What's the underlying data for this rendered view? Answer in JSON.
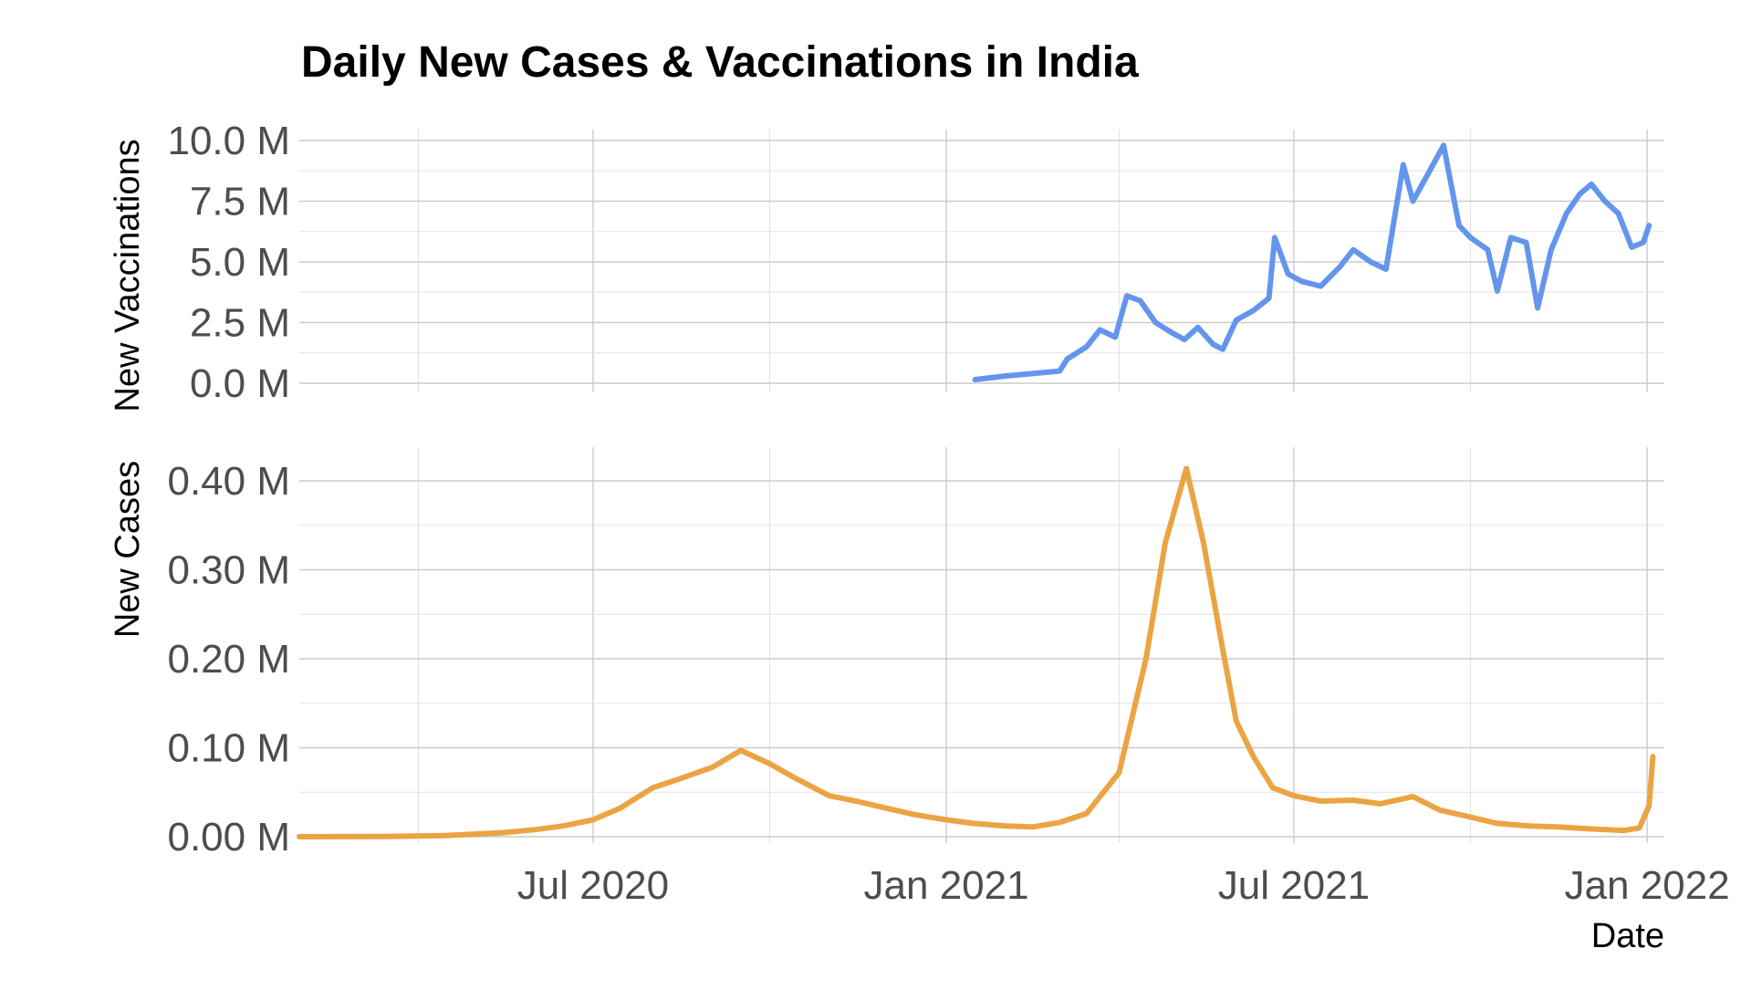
{
  "chart_data": {
    "type": "line",
    "title": "Daily New Cases & Vaccinations in India",
    "xlabel": "Date",
    "x_ticks": [
      "Jul 2020",
      "Jan 2021",
      "Jul 2021",
      "Jan 2022"
    ],
    "xlim": [
      "2020-01-30",
      "2022-01-10"
    ],
    "grid": true,
    "panels": [
      {
        "ylabel": "New Vaccinations",
        "y_ticks": [
          "0.0 M",
          "2.5 M",
          "5.0 M",
          "7.5 M",
          "10.0 M"
        ],
        "ylim": [
          0,
          10000000
        ],
        "series": [
          {
            "color": "#6495ED",
            "points": [
              [
                "2021-01-16",
                150000
              ],
              [
                "2021-02-01",
                300000
              ],
              [
                "2021-02-15",
                400000
              ],
              [
                "2021-03-01",
                500000
              ],
              [
                "2021-03-05",
                1000000
              ],
              [
                "2021-03-15",
                1500000
              ],
              [
                "2021-03-22",
                2200000
              ],
              [
                "2021-03-30",
                1900000
              ],
              [
                "2021-04-05",
                3600000
              ],
              [
                "2021-04-12",
                3400000
              ],
              [
                "2021-04-20",
                2500000
              ],
              [
                "2021-04-28",
                2100000
              ],
              [
                "2021-05-05",
                1800000
              ],
              [
                "2021-05-12",
                2300000
              ],
              [
                "2021-05-20",
                1600000
              ],
              [
                "2021-05-25",
                1400000
              ],
              [
                "2021-06-01",
                2600000
              ],
              [
                "2021-06-10",
                3000000
              ],
              [
                "2021-06-18",
                3500000
              ],
              [
                "2021-06-21",
                6000000
              ],
              [
                "2021-06-28",
                4500000
              ],
              [
                "2021-07-05",
                4200000
              ],
              [
                "2021-07-15",
                4000000
              ],
              [
                "2021-07-25",
                4800000
              ],
              [
                "2021-08-01",
                5500000
              ],
              [
                "2021-08-10",
                5000000
              ],
              [
                "2021-08-18",
                4700000
              ],
              [
                "2021-08-27",
                9000000
              ],
              [
                "2021-09-01",
                7500000
              ],
              [
                "2021-09-08",
                8500000
              ],
              [
                "2021-09-17",
                9800000
              ],
              [
                "2021-09-25",
                6500000
              ],
              [
                "2021-10-01",
                6000000
              ],
              [
                "2021-10-10",
                5500000
              ],
              [
                "2021-10-15",
                3800000
              ],
              [
                "2021-10-22",
                6000000
              ],
              [
                "2021-10-30",
                5800000
              ],
              [
                "2021-11-05",
                3100000
              ],
              [
                "2021-11-12",
                5500000
              ],
              [
                "2021-11-20",
                7000000
              ],
              [
                "2021-11-27",
                7800000
              ],
              [
                "2021-12-03",
                8200000
              ],
              [
                "2021-12-10",
                7500000
              ],
              [
                "2021-12-17",
                7000000
              ],
              [
                "2021-12-24",
                5600000
              ],
              [
                "2021-12-30",
                5800000
              ],
              [
                "2022-01-02",
                6500000
              ]
            ]
          }
        ]
      },
      {
        "ylabel": "New Cases",
        "y_ticks": [
          "0.00 M",
          "0.10 M",
          "0.20 M",
          "0.30 M",
          "0.40 M"
        ],
        "ylim": [
          0,
          400000
        ],
        "series": [
          {
            "color": "#EBA443",
            "points": [
              [
                "2020-01-30",
                0
              ],
              [
                "2020-03-15",
                300
              ],
              [
                "2020-04-15",
                1200
              ],
              [
                "2020-05-15",
                4500
              ],
              [
                "2020-06-01",
                8000
              ],
              [
                "2020-06-15",
                12000
              ],
              [
                "2020-07-01",
                19000
              ],
              [
                "2020-07-15",
                32000
              ],
              [
                "2020-08-01",
                55000
              ],
              [
                "2020-08-15",
                65000
              ],
              [
                "2020-09-01",
                78000
              ],
              [
                "2020-09-16",
                97000
              ],
              [
                "2020-10-01",
                82000
              ],
              [
                "2020-10-15",
                65000
              ],
              [
                "2020-11-01",
                46000
              ],
              [
                "2020-11-15",
                40000
              ],
              [
                "2020-12-01",
                32000
              ],
              [
                "2020-12-15",
                25000
              ],
              [
                "2021-01-01",
                19000
              ],
              [
                "2021-01-15",
                15000
              ],
              [
                "2021-02-01",
                12000
              ],
              [
                "2021-02-15",
                11000
              ],
              [
                "2021-03-01",
                16000
              ],
              [
                "2021-03-15",
                26000
              ],
              [
                "2021-04-01",
                72000
              ],
              [
                "2021-04-15",
                200000
              ],
              [
                "2021-04-25",
                330000
              ],
              [
                "2021-05-06",
                414000
              ],
              [
                "2021-05-15",
                330000
              ],
              [
                "2021-05-25",
                210000
              ],
              [
                "2021-06-01",
                130000
              ],
              [
                "2021-06-10",
                90000
              ],
              [
                "2021-06-20",
                55000
              ],
              [
                "2021-07-01",
                46000
              ],
              [
                "2021-07-15",
                40000
              ],
              [
                "2021-08-01",
                41000
              ],
              [
                "2021-08-15",
                37000
              ],
              [
                "2021-09-01",
                45000
              ],
              [
                "2021-09-15",
                30000
              ],
              [
                "2021-10-01",
                22000
              ],
              [
                "2021-10-15",
                15000
              ],
              [
                "2021-11-01",
                12000
              ],
              [
                "2021-11-15",
                11000
              ],
              [
                "2021-12-01",
                9000
              ],
              [
                "2021-12-20",
                7000
              ],
              [
                "2021-12-28",
                10000
              ],
              [
                "2022-01-02",
                35000
              ],
              [
                "2022-01-04",
                90000
              ]
            ]
          }
        ]
      }
    ]
  }
}
